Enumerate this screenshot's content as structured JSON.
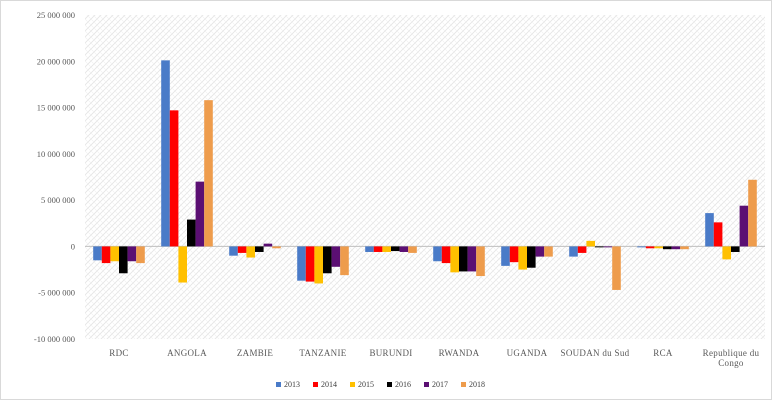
{
  "chart_data": {
    "type": "bar",
    "title": "",
    "xlabel": "",
    "ylabel": "",
    "categories": [
      "RDC",
      "ANGOLA",
      "ZAMBIE",
      "TANZANIE",
      "BURUNDI",
      "RWANDA",
      "UGANDA",
      "SOUDAN du Sud",
      "RCA",
      "Republique du Congo"
    ],
    "ylim": [
      -10000000,
      25000000
    ],
    "yticks": [
      25000000,
      20000000,
      15000000,
      10000000,
      5000000,
      0,
      -5000000,
      -10000000
    ],
    "ytick_labels": [
      "25 000 000",
      "20 000 000",
      "15 000 000",
      "10 000 000",
      "5 000 000",
      "0",
      "-5 000 000",
      "-10 000 000"
    ],
    "legend_position": "bottom",
    "grid": false,
    "series": [
      {
        "name": "2013",
        "color": "#4a7bc8",
        "values": [
          -1500000,
          20100000,
          -1000000,
          -3700000,
          -600000,
          -1600000,
          -2100000,
          -1100000,
          -100000,
          3600000
        ]
      },
      {
        "name": "2014",
        "color": "#ff0000",
        "values": [
          -1800000,
          14700000,
          -700000,
          -3800000,
          -600000,
          -1800000,
          -1700000,
          -700000,
          -200000,
          2600000
        ]
      },
      {
        "name": "2015",
        "color": "#ffc000",
        "values": [
          -1600000,
          -3900000,
          -1200000,
          -4000000,
          -600000,
          -2800000,
          -2500000,
          600000,
          -200000,
          -1400000
        ]
      },
      {
        "name": "2016",
        "color": "#000000",
        "values": [
          -2900000,
          2900000,
          -600000,
          -2900000,
          -500000,
          -2700000,
          -2300000,
          -100000,
          -300000,
          -600000
        ]
      },
      {
        "name": "2017",
        "color": "#5b0f73",
        "values": [
          -1600000,
          7000000,
          300000,
          -2200000,
          -600000,
          -2700000,
          -1100000,
          -100000,
          -300000,
          4400000
        ]
      },
      {
        "name": "2018",
        "color": "#ee9c4c",
        "values": [
          -1800000,
          15800000,
          -200000,
          -3100000,
          -700000,
          -3200000,
          -1100000,
          -4700000,
          -300000,
          7200000
        ]
      }
    ]
  }
}
